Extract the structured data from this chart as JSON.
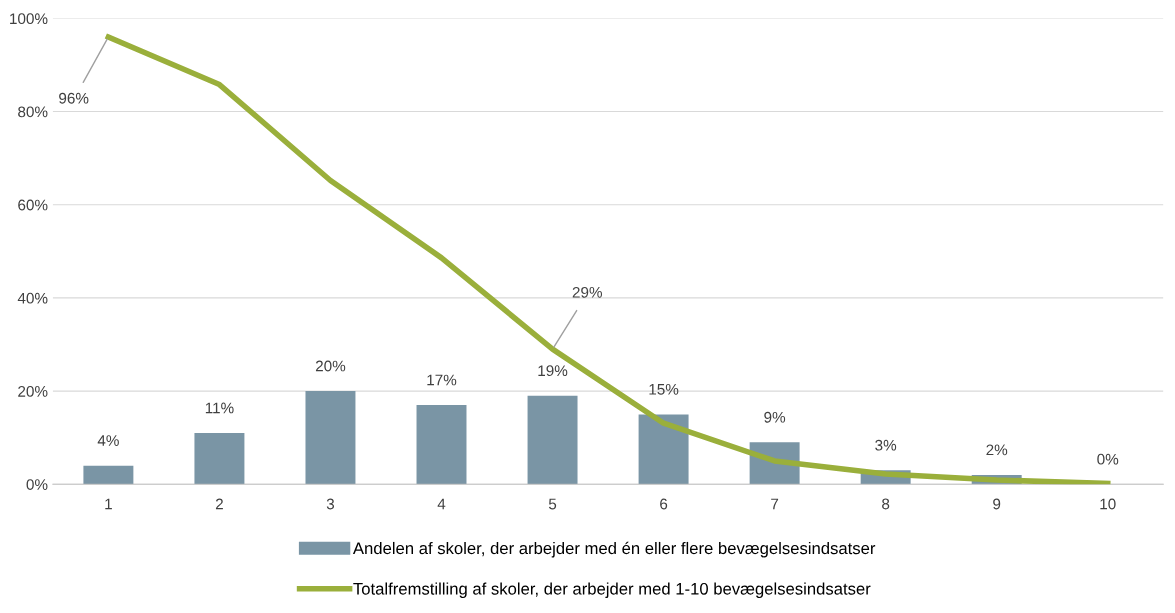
{
  "chart_data": {
    "type": "bar",
    "categories": [
      "1",
      "2",
      "3",
      "4",
      "5",
      "6",
      "7",
      "8",
      "9",
      "10"
    ],
    "series": [
      {
        "name": "Andelen af skoler, der arbejder med én eller flere bevægelsesindsatser",
        "color": "#7a95a5",
        "values": [
          4,
          11,
          20,
          17,
          19,
          15,
          9,
          3,
          2,
          0
        ],
        "value_labels": [
          "4%",
          "11%",
          "20%",
          "17%",
          "19%",
          "15%",
          "9%",
          "3%",
          "2%",
          "0%"
        ]
      },
      {
        "type": "line",
        "name": "Totalfremstilling af skoler, der arbejder med 1-10 bevægelsesindsatser",
        "color": "#9aaf3b",
        "values": [
          96,
          85.8,
          65.2,
          48.6,
          29,
          13.1,
          5,
          2.2,
          0.9,
          0.2
        ],
        "value_labels": [
          "96%",
          null,
          null,
          null,
          "29%",
          null,
          null,
          null,
          null,
          null
        ]
      }
    ],
    "ylim": [
      0,
      100
    ],
    "yticks": [
      {
        "value": 0,
        "label": "0%"
      },
      {
        "value": 20,
        "label": "20%"
      },
      {
        "value": 40,
        "label": "40%"
      },
      {
        "value": 60,
        "label": "60%"
      },
      {
        "value": 80,
        "label": "80%"
      },
      {
        "value": 100,
        "label": "100%"
      }
    ],
    "grid": "y",
    "legend": "bottom",
    "marker": "none",
    "line_style": "solid"
  }
}
